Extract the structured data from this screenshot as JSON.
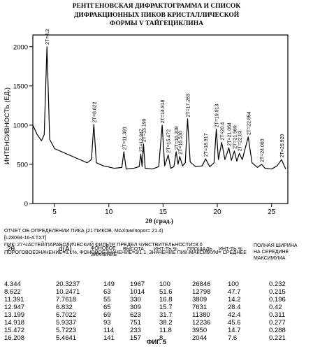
{
  "title_lines": [
    "РЕНТГЕНОВСКАЯ ДИФРАКТОГРАММА И СПИСОК",
    "ДИФРАКЦИОННЫХ ПИКОВ КРИСТАЛЛИЧЕСКОЙ",
    "ФОРМЫ V ТАЙГЕЦИКЛИНА"
  ],
  "chart_data": {
    "type": "line",
    "xlabel": "2θ (град.)",
    "ylabel": "ИНТЕНСИВНОСТЬ (ЕД.)",
    "xlim": [
      3,
      26.5
    ],
    "ylim": [
      0,
      2150
    ],
    "x_ticks": [
      5,
      10,
      15,
      20,
      25
    ],
    "y_ticks": [
      0,
      500,
      1000,
      1500,
      2000
    ],
    "grid": false,
    "peaks": [
      {
        "x": 4.3,
        "label": "2T=4.3"
      },
      {
        "x": 8.622,
        "label": "2T=8.622"
      },
      {
        "x": 11.391,
        "label": "2T=11.391"
      },
      {
        "x": 12.947,
        "label": "2T=12.947"
      },
      {
        "x": 13.199,
        "label": "2T=13.199"
      },
      {
        "x": 14.918,
        "label": "2T=14.918"
      },
      {
        "x": 15.472,
        "label": "2T=15.472"
      },
      {
        "x": 16.208,
        "label": "2T=16.208"
      },
      {
        "x": 16.538,
        "label": "2T=16.538"
      },
      {
        "x": 17.263,
        "label": "2T=17.263"
      },
      {
        "x": 18.917,
        "label": "2T=18.917"
      },
      {
        "x": 19.913,
        "label": "2T=19.913"
      },
      {
        "x": 20.4,
        "label": "2T=20.4"
      },
      {
        "x": 21.064,
        "label": "2T=21.064"
      },
      {
        "x": 21.569,
        "label": "2T=21.569"
      },
      {
        "x": 22.03,
        "label": "2T=22.03"
      },
      {
        "x": 22.854,
        "label": "2T=22.854"
      },
      {
        "x": 24.083,
        "label": "2T=24.083"
      },
      {
        "x": 25.92,
        "label": "2T=25.920"
      }
    ],
    "trace": [
      [
        3.0,
        1000
      ],
      [
        3.4,
        880
      ],
      [
        3.8,
        800
      ],
      [
        4.05,
        880
      ],
      [
        4.3,
        2000
      ],
      [
        4.55,
        820
      ],
      [
        5.0,
        700
      ],
      [
        6.0,
        640
      ],
      [
        7.0,
        580
      ],
      [
        8.0,
        520
      ],
      [
        8.4,
        560
      ],
      [
        8.62,
        1010
      ],
      [
        8.85,
        520
      ],
      [
        9.5,
        480
      ],
      [
        10.5,
        450
      ],
      [
        11.2,
        460
      ],
      [
        11.39,
        660
      ],
      [
        11.6,
        440
      ],
      [
        12.3,
        450
      ],
      [
        12.8,
        470
      ],
      [
        12.95,
        630
      ],
      [
        13.07,
        470
      ],
      [
        13.2,
        760
      ],
      [
        13.35,
        450
      ],
      [
        14.0,
        440
      ],
      [
        14.6,
        470
      ],
      [
        14.92,
        1000
      ],
      [
        15.15,
        480
      ],
      [
        15.47,
        620
      ],
      [
        15.7,
        450
      ],
      [
        16.0,
        470
      ],
      [
        16.21,
        660
      ],
      [
        16.38,
        500
      ],
      [
        16.54,
        600
      ],
      [
        16.8,
        480
      ],
      [
        17.05,
        520
      ],
      [
        17.26,
        1080
      ],
      [
        17.5,
        530
      ],
      [
        18.0,
        470
      ],
      [
        18.6,
        480
      ],
      [
        18.92,
        570
      ],
      [
        19.3,
        470
      ],
      [
        19.7,
        520
      ],
      [
        19.91,
        950
      ],
      [
        20.1,
        560
      ],
      [
        20.4,
        780
      ],
      [
        20.7,
        560
      ],
      [
        21.06,
        710
      ],
      [
        21.3,
        550
      ],
      [
        21.57,
        670
      ],
      [
        21.8,
        540
      ],
      [
        22.03,
        640
      ],
      [
        22.3,
        560
      ],
      [
        22.85,
        850
      ],
      [
        23.2,
        520
      ],
      [
        23.7,
        460
      ],
      [
        24.08,
        500
      ],
      [
        24.4,
        450
      ],
      [
        25.0,
        440
      ],
      [
        25.5,
        480
      ],
      [
        25.92,
        560
      ],
      [
        26.3,
        440
      ]
    ]
  },
  "report": {
    "line1": "ОТЧЕТ ОБ ОПРЕДЕЛЕНИИ ПИКА (21 ПИКОВ, MAXпик/порог= 21.4)",
    "line2": "[L28094-16-4.TXT]",
    "line3": "ПИК: 27-ЧАСТЕЙ/ПАРАБОЛИЧЕСКИЙ ФИЛЬТР, ПРЕДЕЛ ЧУВСТВИТЕЛЬНОСТИ=8.0",
    "line4": "ПОРОГОВОЕЗНАЧЕНИЕ=0.1%, ФОНОВОЕЗНАЧЕНИЕ=3/1.1, ЗНАЧЕНИЕ ПИК-МАКСИМУМ= СРЕДНЕЕ"
  },
  "table": {
    "headers": {
      "two_theta": "2θ",
      "d": "d(A)",
      "background_1": "ФОНОВОЕ",
      "background_2": "ЗНАЧЕНИЕ",
      "height": "ВЫСОТА",
      "int_pct": "ИНТ-ТЬ %",
      "area": "ПЛОЩАДЬ",
      "int_pct2": "ИНТ-ТЬ %",
      "fwhm_1": "ПОЛНАЯ ШИРИНА",
      "fwhm_2": "НА СЕРЕДИНЕ",
      "fwhm_3": "МАКСИМУМА"
    },
    "rows": [
      {
        "two_theta": "4.344",
        "d": "20.3237",
        "bg": "149",
        "height": "1967",
        "int": "100",
        "area": "26846",
        "int2": "100",
        "fwhm": "0.232"
      },
      {
        "two_theta": "8.622",
        "d": "10.2471",
        "bg": "63",
        "height": "1014",
        "int": "51.6",
        "area": "12798",
        "int2": "47.7",
        "fwhm": "0.215"
      },
      {
        "two_theta": "11.391",
        "d": "7.7618",
        "bg": "55",
        "height": "330",
        "int": "16.8",
        "area": "3809",
        "int2": "14.2",
        "fwhm": "0.196"
      },
      {
        "two_theta": "12.947",
        "d": "6.832",
        "bg": "65",
        "height": "309",
        "int": "15.7",
        "area": "7631",
        "int2": "28.4",
        "fwhm": "0.42"
      },
      {
        "two_theta": "13.199",
        "d": "6.7022",
        "bg": "69",
        "height": "623",
        "int": "31.7",
        "area": "11380",
        "int2": "42.4",
        "fwhm": "0.311"
      },
      {
        "two_theta": "14.918",
        "d": "5.9337",
        "bg": "93",
        "height": "751",
        "int": "38.2",
        "area": "12236",
        "int2": "45.6",
        "fwhm": "0.277"
      },
      {
        "two_theta": "15.472",
        "d": "5.7223",
        "bg": "114",
        "height": "233",
        "int": "11.8",
        "area": "3950",
        "int2": "14.7",
        "fwhm": "0.288"
      },
      {
        "two_theta": "16.208",
        "d": "5.4641",
        "bg": "141",
        "height": "157",
        "int": "8",
        "area": "2044",
        "int2": "7.6",
        "fwhm": "0.221"
      }
    ]
  },
  "caption": "ФИГ. 5"
}
